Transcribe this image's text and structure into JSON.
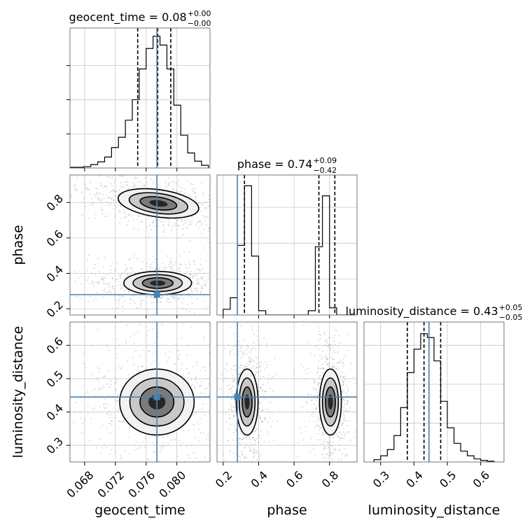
{
  "chart_data": {
    "type": "corner",
    "parameters": [
      "geocent_time",
      "phase",
      "luminosity_distance"
    ],
    "truth": {
      "geocent_time": 0.0774,
      "phase": 0.28,
      "luminosity_distance": 0.445
    },
    "truth_color": "#4682b4",
    "titles": [
      {
        "param": "geocent_time",
        "text": "geocent_time = 0.08",
        "plus": "+0.00",
        "minus": "−0.00"
      },
      {
        "param": "phase",
        "text": "phase = 0.74",
        "plus": "+0.09",
        "minus": "−0.42"
      },
      {
        "param": "luminosity_distance",
        "text": "luminosity_distance = 0.43",
        "plus": "+0.05",
        "minus": "−0.05"
      }
    ],
    "axes": {
      "geocent_time": {
        "range": [
          0.0661,
          0.0843
        ],
        "ticks": [
          0.068,
          0.072,
          0.076,
          0.08
        ],
        "tick_labels": [
          "0.068",
          "0.072",
          "0.076",
          "0.080"
        ],
        "label": "geocent_time"
      },
      "phase": {
        "range": [
          0.165,
          0.955
        ],
        "ticks": [
          0.2,
          0.4,
          0.6,
          0.8
        ],
        "tick_labels": [
          "0.2",
          "0.4",
          "0.6",
          "0.8"
        ],
        "label": "phase"
      },
      "luminosity_distance": {
        "range": [
          0.25,
          0.67
        ],
        "ticks": [
          0.3,
          0.4,
          0.5,
          0.6
        ],
        "tick_labels": [
          "0.3",
          "0.4",
          "0.5",
          "0.6"
        ],
        "label": "luminosity_distance"
      }
    },
    "marginals": {
      "geocent_time": {
        "bins": [
          0.0661,
          0.067,
          0.0679,
          0.0688,
          0.0697,
          0.0706,
          0.0715,
          0.0724,
          0.0733,
          0.0742,
          0.0751,
          0.076,
          0.0769,
          0.0778,
          0.0787,
          0.0796,
          0.0805,
          0.0814,
          0.0823,
          0.0832,
          0.0841
        ],
        "counts": [
          1,
          1,
          2,
          5,
          9,
          16,
          30,
          45,
          70,
          100,
          145,
          175,
          193,
          180,
          145,
          92,
          48,
          22,
          10,
          4
        ],
        "quantiles": [
          0.0749,
          0.0775,
          0.0792
        ],
        "ylim": [
          0,
          205
        ]
      },
      "phase": {
        "bins": [
          0.2,
          0.24,
          0.28,
          0.32,
          0.36,
          0.4,
          0.44,
          0.48,
          0.52,
          0.56,
          0.6,
          0.64,
          0.68,
          0.72,
          0.76,
          0.8,
          0.84,
          0.88,
          0.92
        ],
        "counts": [
          8,
          24,
          97,
          180,
          82,
          6,
          0,
          0,
          0,
          0,
          0,
          0,
          6,
          95,
          166,
          10,
          0,
          0
        ],
        "quantiles": [
          0.32,
          0.74,
          0.83
        ],
        "ylim": [
          0,
          195
        ]
      },
      "luminosity_distance": {
        "bins": [
          0.28,
          0.3,
          0.32,
          0.34,
          0.36,
          0.38,
          0.4,
          0.42,
          0.44,
          0.46,
          0.48,
          0.5,
          0.52,
          0.54,
          0.56,
          0.58,
          0.6,
          0.62,
          0.64
        ],
        "counts": [
          3,
          8,
          16,
          34,
          70,
          115,
          145,
          165,
          160,
          130,
          78,
          44,
          24,
          14,
          8,
          4,
          2,
          1
        ],
        "quantiles": [
          0.38,
          0.43,
          0.48
        ],
        "ylim": [
          0,
          180
        ]
      }
    },
    "joint": [
      {
        "x": "geocent_time",
        "y": "phase",
        "blobs": [
          {
            "cx": 0.0776,
            "cy": 0.795,
            "sx": 0.0024,
            "sy": 0.035,
            "rot": 8
          },
          {
            "cx": 0.0775,
            "cy": 0.345,
            "sx": 0.002,
            "sy": 0.03,
            "rot": 0
          }
        ]
      },
      {
        "x": "geocent_time",
        "y": "luminosity_distance",
        "blobs": [
          {
            "cx": 0.0774,
            "cy": 0.43,
            "sx": 0.0022,
            "sy": 0.045,
            "rot": 0
          }
        ]
      },
      {
        "x": "phase",
        "y": "luminosity_distance",
        "blobs": [
          {
            "cx": 0.335,
            "cy": 0.43,
            "sx": 0.028,
            "sy": 0.045,
            "rot": 0
          },
          {
            "cx": 0.805,
            "cy": 0.43,
            "sx": 0.028,
            "sy": 0.045,
            "rot": 0
          }
        ]
      }
    ]
  }
}
